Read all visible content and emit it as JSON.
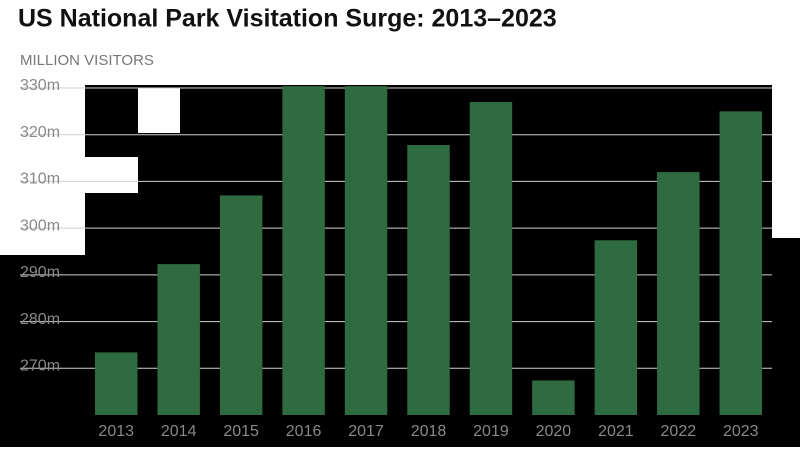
{
  "chart_data": {
    "type": "bar",
    "title": "US National Park Visitation Surge: 2013–2023",
    "subtitle": "MILLION VISITORS",
    "categories": [
      "2013",
      "2014",
      "2015",
      "2016",
      "2017",
      "2018",
      "2019",
      "2020",
      "2021",
      "2022",
      "2023"
    ],
    "values": [
      273.4,
      292.3,
      307.0,
      330.4,
      330.4,
      317.8,
      327.0,
      267.4,
      297.4,
      312.0,
      325.0
    ],
    "color": "#2e6b40",
    "ylim": [
      260,
      330
    ],
    "yticks": [
      {
        "value": 270,
        "label": "270m"
      },
      {
        "value": 280,
        "label": "280m"
      },
      {
        "value": 290,
        "label": "290m"
      },
      {
        "value": 300,
        "label": "300m"
      },
      {
        "value": 310,
        "label": "310m"
      },
      {
        "value": 320,
        "label": "320m"
      },
      {
        "value": 330,
        "label": "330m"
      }
    ],
    "grid": true
  }
}
